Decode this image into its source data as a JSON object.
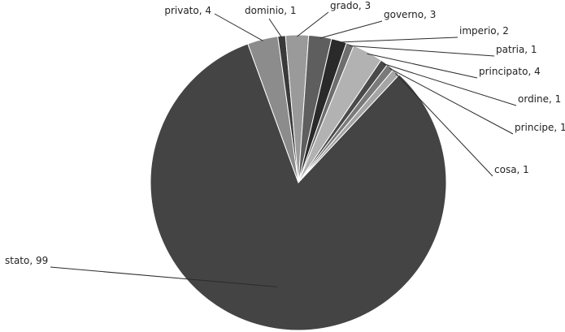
{
  "chart_data": {
    "type": "pie",
    "title": "",
    "start_angle_deg": -20,
    "direction": "clockwise",
    "legend": "none",
    "label_format": "{category}, {value}",
    "slices": [
      {
        "category": "privato",
        "value": 4,
        "color": "#8c8c8c",
        "label": "privato, 4"
      },
      {
        "category": "dominio",
        "value": 1,
        "color": "#3a3a3a",
        "label": "dominio, 1"
      },
      {
        "category": "grado",
        "value": 3,
        "color": "#9a9a9a",
        "label": "grado, 3"
      },
      {
        "category": "governo",
        "value": 3,
        "color": "#5e5e5e",
        "label": "governo, 3"
      },
      {
        "category": "imperio",
        "value": 2,
        "color": "#2a2a2a",
        "label": "imperio, 2"
      },
      {
        "category": "patria",
        "value": 1,
        "color": "#6e6e6e",
        "label": "patria, 1"
      },
      {
        "category": "principato",
        "value": 4,
        "color": "#b2b2b2",
        "label": "principato, 4"
      },
      {
        "category": "ordine",
        "value": 1,
        "color": "#4a4a4a",
        "label": "ordine, 1"
      },
      {
        "category": "principe",
        "value": 1,
        "color": "#7a7a7a",
        "label": "principe, 1"
      },
      {
        "category": "cosa",
        "value": 1,
        "color": "#a5a5a5",
        "label": "cosa, 1"
      },
      {
        "category": "stato",
        "value": 99,
        "color": "#444444",
        "label": "stato, 99"
      }
    ]
  }
}
